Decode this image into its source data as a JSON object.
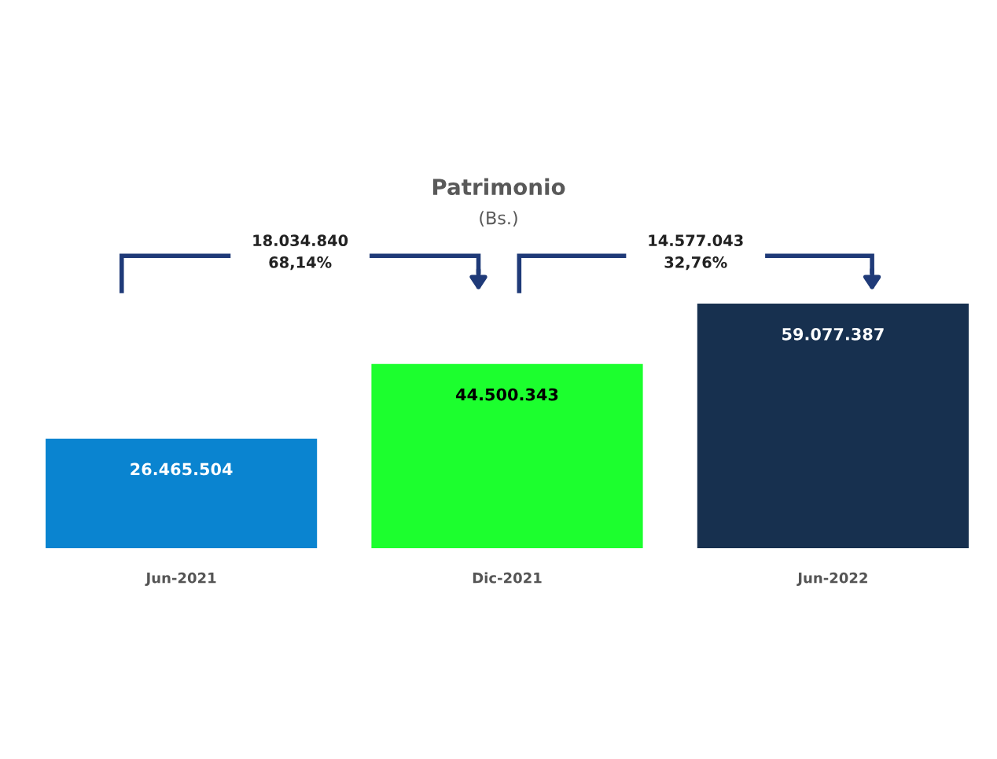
{
  "chart_data": {
    "type": "bar",
    "title": "Patrimonio",
    "subtitle": "(Bs.)",
    "categories": [
      "Jun-2021",
      "Dic-2021",
      "Jun-2022"
    ],
    "values": [
      26465504,
      44500343,
      59077387
    ],
    "colors": [
      "#0a84d0",
      "#1cff2e",
      "#17304f"
    ],
    "value_labels": [
      "26.465.504",
      "44.500.343",
      "59.077.387"
    ],
    "annotations": [
      "18.034.840\n68,14%",
      "14.577.043\n32,76%"
    ],
    "tick_labels": "x",
    "grid": false
  }
}
